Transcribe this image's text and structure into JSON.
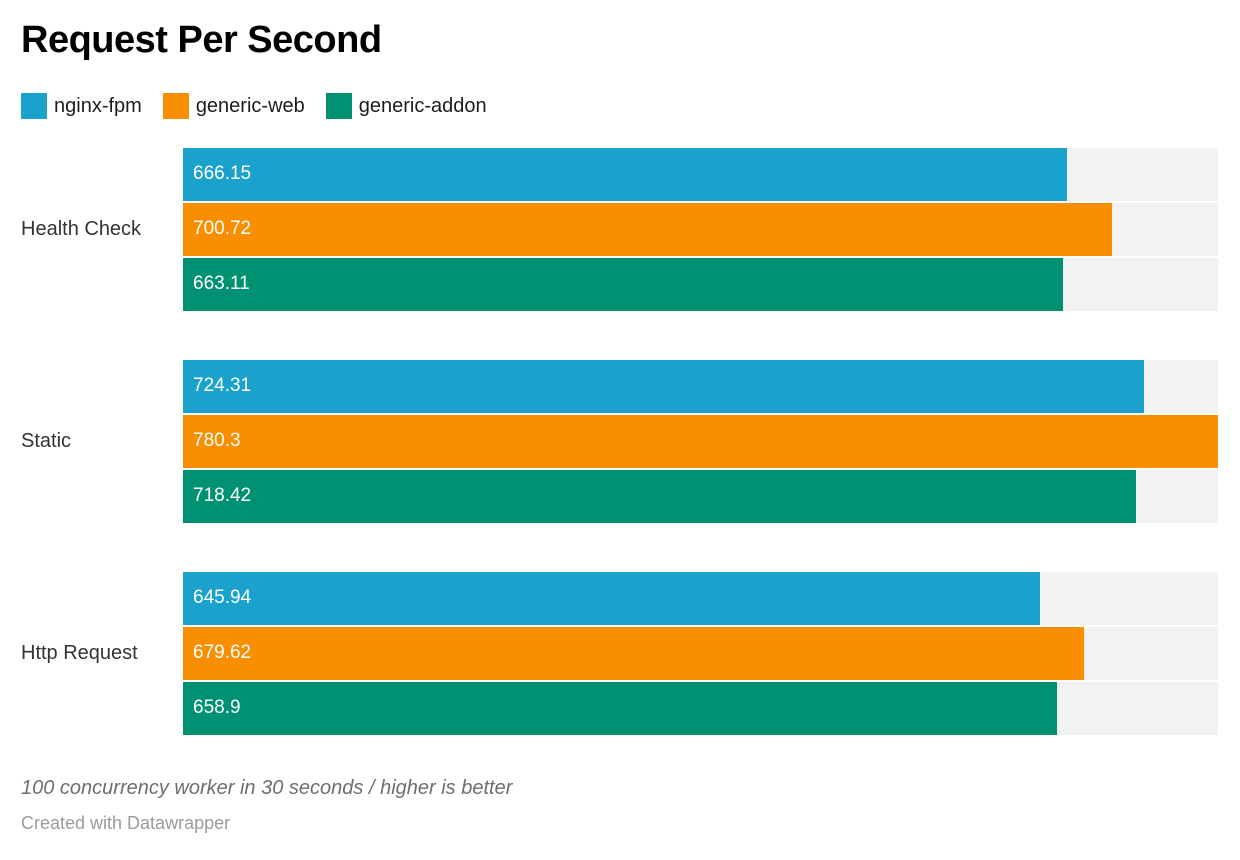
{
  "title": "Request Per Second",
  "footer": {
    "note": "100 concurrency worker in 30 seconds / higher is better",
    "byline": "Created with Datawrapper"
  },
  "chart_data": {
    "type": "bar",
    "orientation": "horizontal",
    "title": "Request Per Second",
    "categories": [
      "Health Check",
      "Static",
      "Http Request"
    ],
    "series": [
      {
        "name": "nginx-fpm",
        "color": "#1BA2CC",
        "values": [
          666.15,
          724.31,
          645.94
        ]
      },
      {
        "name": "generic-web",
        "color": "#F98E00",
        "values": [
          700.72,
          780.3,
          679.62
        ]
      },
      {
        "name": "generic-addon",
        "color": "#009173",
        "values": [
          663.11,
          718.42,
          658.9
        ]
      }
    ],
    "xlim": [
      0,
      780.3
    ],
    "track_color": "#F2F2F2",
    "grid": false,
    "legend_position": "top",
    "value_labels": "inside-start"
  }
}
